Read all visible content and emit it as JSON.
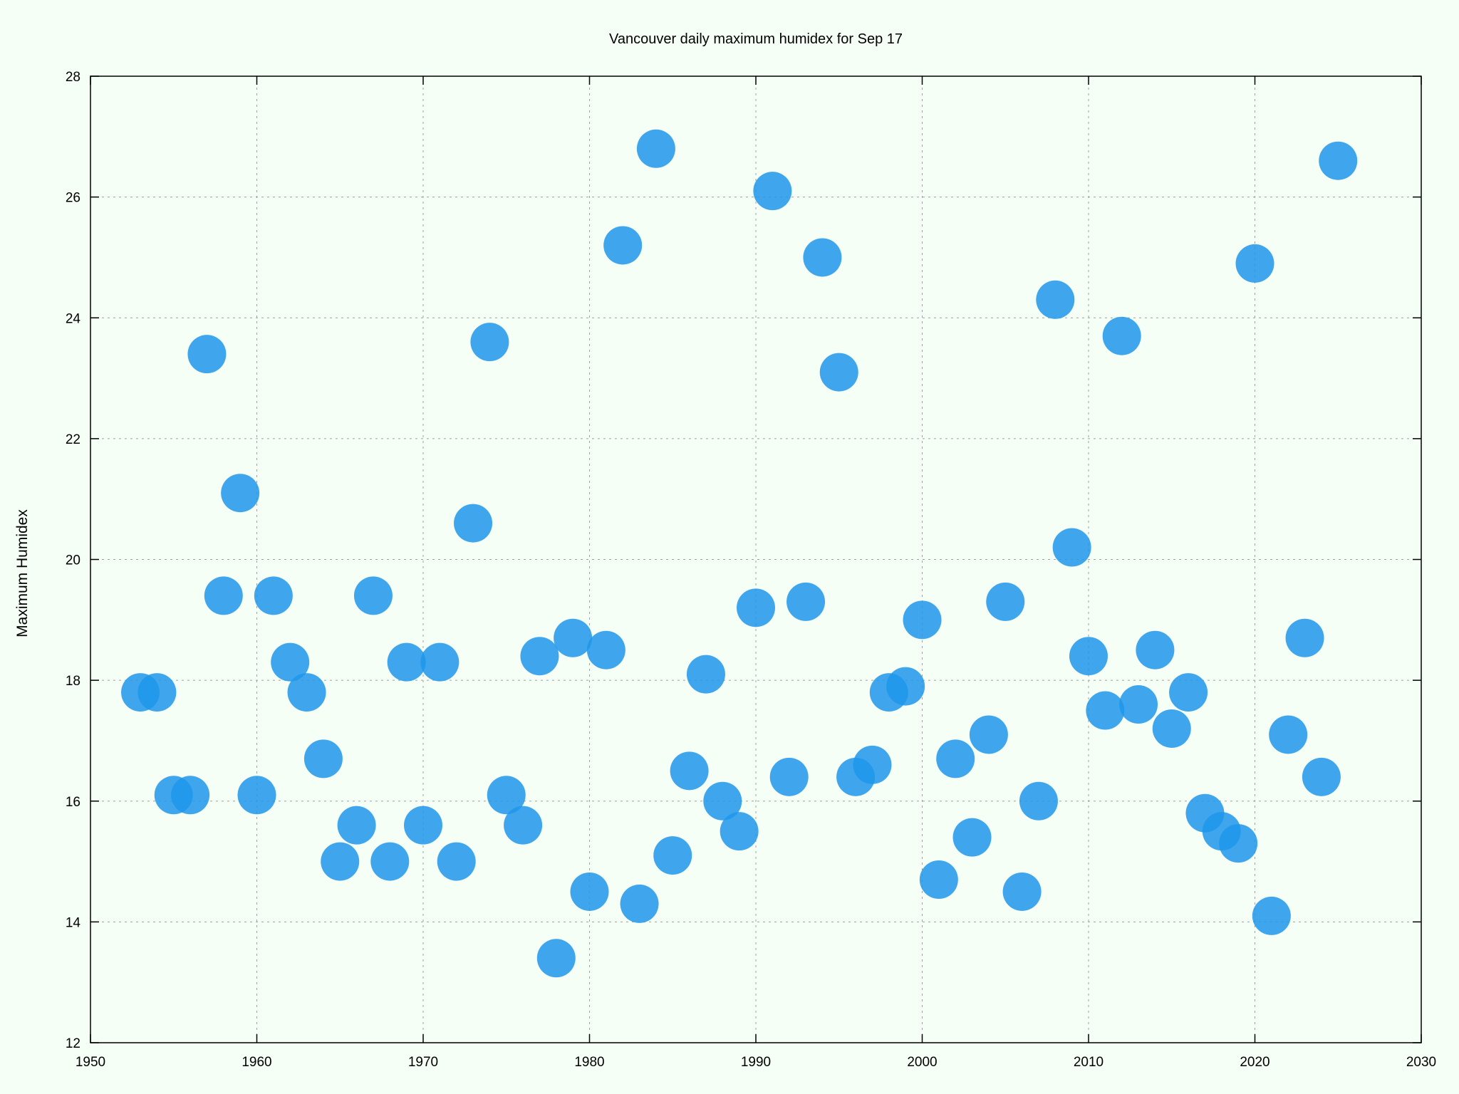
{
  "chart_data": {
    "type": "scatter",
    "title": "Vancouver daily maximum humidex for Sep 17",
    "xlabel": "",
    "ylabel": "Maximum Humidex",
    "xlim": [
      1950,
      2030
    ],
    "ylim": [
      12,
      28
    ],
    "xticks": [
      1950,
      1960,
      1970,
      1980,
      1990,
      2000,
      2010,
      2020,
      2030
    ],
    "yticks": [
      12,
      14,
      16,
      18,
      20,
      22,
      24,
      26,
      28
    ],
    "grid": true,
    "legend": "none",
    "marker_color": "#1e96eb",
    "series": [
      {
        "points": [
          {
            "x": 1953,
            "y": 17.8
          },
          {
            "x": 1954,
            "y": 17.8
          },
          {
            "x": 1955,
            "y": 16.1
          },
          {
            "x": 1956,
            "y": 16.1
          },
          {
            "x": 1957,
            "y": 23.4
          },
          {
            "x": 1958,
            "y": 19.4
          },
          {
            "x": 1959,
            "y": 21.1
          },
          {
            "x": 1960,
            "y": 16.1
          },
          {
            "x": 1961,
            "y": 19.4
          },
          {
            "x": 1962,
            "y": 18.3
          },
          {
            "x": 1963,
            "y": 17.8
          },
          {
            "x": 1964,
            "y": 16.7
          },
          {
            "x": 1965,
            "y": 15.0
          },
          {
            "x": 1966,
            "y": 15.6
          },
          {
            "x": 1967,
            "y": 19.4
          },
          {
            "x": 1968,
            "y": 15.0
          },
          {
            "x": 1969,
            "y": 18.3
          },
          {
            "x": 1970,
            "y": 15.6
          },
          {
            "x": 1971,
            "y": 18.3
          },
          {
            "x": 1972,
            "y": 15.0
          },
          {
            "x": 1973,
            "y": 20.6
          },
          {
            "x": 1974,
            "y": 23.6
          },
          {
            "x": 1975,
            "y": 16.1
          },
          {
            "x": 1976,
            "y": 15.6
          },
          {
            "x": 1977,
            "y": 18.4
          },
          {
            "x": 1978,
            "y": 13.4
          },
          {
            "x": 1979,
            "y": 18.7
          },
          {
            "x": 1980,
            "y": 14.5
          },
          {
            "x": 1981,
            "y": 18.5
          },
          {
            "x": 1982,
            "y": 25.2
          },
          {
            "x": 1983,
            "y": 14.3
          },
          {
            "x": 1984,
            "y": 26.8
          },
          {
            "x": 1985,
            "y": 15.1
          },
          {
            "x": 1986,
            "y": 16.5
          },
          {
            "x": 1987,
            "y": 18.1
          },
          {
            "x": 1988,
            "y": 16.0
          },
          {
            "x": 1989,
            "y": 15.5
          },
          {
            "x": 1990,
            "y": 19.2
          },
          {
            "x": 1991,
            "y": 26.1
          },
          {
            "x": 1992,
            "y": 16.4
          },
          {
            "x": 1993,
            "y": 19.3
          },
          {
            "x": 1994,
            "y": 25.0
          },
          {
            "x": 1995,
            "y": 23.1
          },
          {
            "x": 1996,
            "y": 16.4
          },
          {
            "x": 1997,
            "y": 16.6
          },
          {
            "x": 1998,
            "y": 17.8
          },
          {
            "x": 1999,
            "y": 17.9
          },
          {
            "x": 2000,
            "y": 19.0
          },
          {
            "x": 2001,
            "y": 14.7
          },
          {
            "x": 2002,
            "y": 16.7
          },
          {
            "x": 2003,
            "y": 15.4
          },
          {
            "x": 2004,
            "y": 17.1
          },
          {
            "x": 2005,
            "y": 19.3
          },
          {
            "x": 2006,
            "y": 14.5
          },
          {
            "x": 2007,
            "y": 16.0
          },
          {
            "x": 2008,
            "y": 24.3
          },
          {
            "x": 2009,
            "y": 20.2
          },
          {
            "x": 2010,
            "y": 18.4
          },
          {
            "x": 2011,
            "y": 17.5
          },
          {
            "x": 2012,
            "y": 23.7
          },
          {
            "x": 2013,
            "y": 17.6
          },
          {
            "x": 2014,
            "y": 18.5
          },
          {
            "x": 2015,
            "y": 17.2
          },
          {
            "x": 2016,
            "y": 17.8
          },
          {
            "x": 2017,
            "y": 15.8
          },
          {
            "x": 2018,
            "y": 15.5
          },
          {
            "x": 2019,
            "y": 15.3
          },
          {
            "x": 2020,
            "y": 24.9
          },
          {
            "x": 2021,
            "y": 14.1
          },
          {
            "x": 2022,
            "y": 17.1
          },
          {
            "x": 2023,
            "y": 18.7
          },
          {
            "x": 2024,
            "y": 16.4
          },
          {
            "x": 2025,
            "y": 26.6
          }
        ]
      }
    ]
  }
}
